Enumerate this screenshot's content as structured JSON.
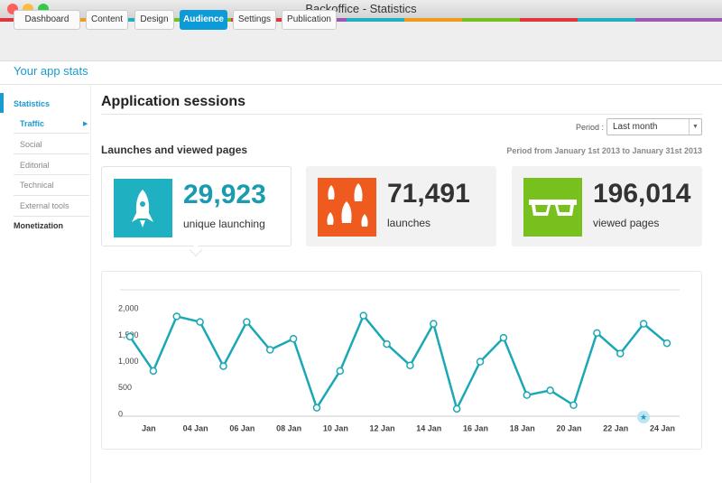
{
  "window": {
    "title": "Backoffice - Statistics"
  },
  "nav": {
    "tabs": [
      "Dashboard",
      "Content",
      "Design",
      "Audience",
      "Settings",
      "Publication"
    ]
  },
  "app_title": "Your app stats",
  "sidebar": {
    "items": [
      "Statistics",
      "Traffic",
      "Social",
      "Editorial",
      "Technical",
      "External tools",
      "Monetization"
    ]
  },
  "page": {
    "title": "Application sessions",
    "period_label": "Period :",
    "period_select": "Last month",
    "section_title": "Launches and viewed pages",
    "period_text": "Period from January 1st 2013 to January 31st 2013"
  },
  "stats": [
    {
      "value": "29,923",
      "label": "unique launching"
    },
    {
      "value": "71,491",
      "label": "launches"
    },
    {
      "value": "196,014",
      "label": "viewed pages"
    }
  ],
  "chart_data": {
    "type": "line",
    "categories": [
      null,
      "Jan",
      null,
      "04 Jan",
      null,
      "06 Jan",
      null,
      "08 Jan",
      null,
      "10 Jan",
      null,
      "12 Jan",
      null,
      "14 Jan",
      null,
      "16 Jan",
      null,
      "18 Jan",
      null,
      "20 Jan",
      null,
      "22 Jan",
      null,
      "24 Jan"
    ],
    "values": [
      1510,
      860,
      1895,
      1790,
      950,
      1790,
      1260,
      1470,
      160,
      860,
      1910,
      1370,
      965,
      1755,
      140,
      1035,
      1490,
      400,
      490,
      210,
      1580,
      1190,
      1755,
      1385
    ],
    "color": "#1ba8b5",
    "ylim": [
      0,
      2400
    ],
    "yticks": [
      0,
      500,
      {
        "value": 1000,
        "label": "1,000"
      },
      {
        "value": 1500,
        "label": "1,500"
      },
      {
        "value": 2000,
        "label": "2,000"
      }
    ]
  }
}
